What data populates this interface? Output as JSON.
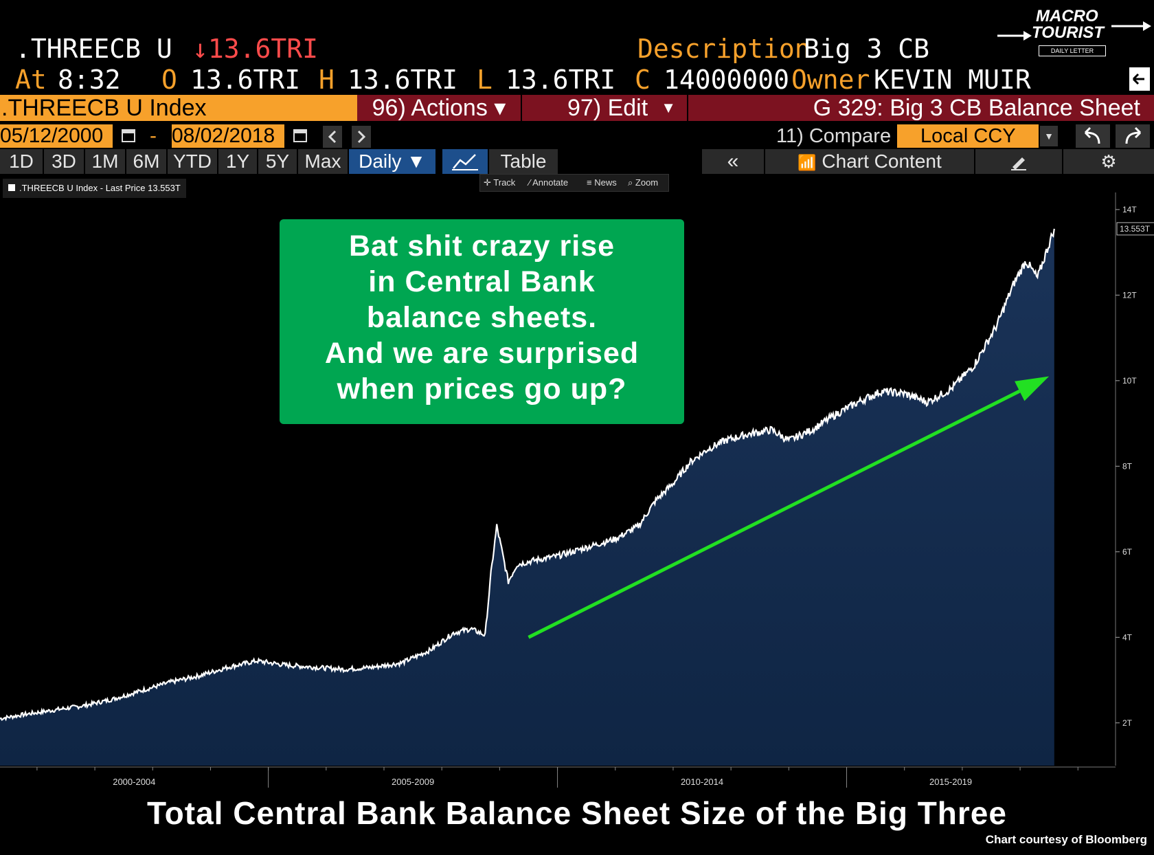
{
  "header": {
    "ticker": ".THREECB U",
    "last_change": "↓13.6TRI",
    "description_label": "Description",
    "description_value": "Big 3 CB",
    "at_label": "At",
    "at_time": "8:32",
    "open_label": "O",
    "open_value": "13.6TRI",
    "high_label": "H",
    "high_value": "13.6TRI",
    "low_label": "L",
    "low_value": "13.6TRI",
    "close_label": "C",
    "close_value": "14000000",
    "owner_label": "Owner",
    "owner_value": "KEVIN MUIR"
  },
  "logo": {
    "line1": "MACRO",
    "line2": "TOURIST",
    "line3": "DAILY LETTER"
  },
  "toolbar": {
    "index_name": ".THREECB U Index",
    "actions": "96) Actions ▾",
    "edit": "97) Edit",
    "chart_name": "G 329: Big 3 CB Balance Sheet",
    "start_date": "05/12/2000",
    "date_sep": "-",
    "end_date": "08/02/2018",
    "compare": "11) Compare",
    "currency": "Local CCY",
    "ranges": [
      "1D",
      "3D",
      "1M",
      "6M",
      "YTD",
      "1Y",
      "5Y",
      "Max"
    ],
    "frequency": "Daily ▼",
    "table": "Table",
    "chart_content": "Chart Content",
    "chips": [
      "Track",
      "Annotate",
      "News",
      "Zoom"
    ]
  },
  "legend": ".THREECB U Index - Last Price 13.553T",
  "callout_lines": [
    "Bat shit crazy rise",
    "in Central Bank",
    "balance sheets.",
    "And we are surprised",
    "when prices go up?"
  ],
  "caption": "Total Central Bank Balance Sheet Size of the Big Three",
  "credit": "Chart courtesy of Bloomberg",
  "colors": {
    "area": "#0f2544",
    "line": "#ffffff",
    "arrow": "#22e022",
    "callout": "#00a651",
    "orange": "#f7a12b",
    "maroon": "#7c1220"
  },
  "chart_data": {
    "type": "area",
    "xlabel": "",
    "ylabel": "",
    "x_tick_labels": [
      "2000-2004",
      "2005-2009",
      "2010-2014",
      "2015-2019"
    ],
    "y_tick_labels": [
      "2T",
      "4T",
      "6T",
      "8T",
      "10T",
      "12T",
      "14T"
    ],
    "y_ticks": [
      2,
      4,
      6,
      8,
      10,
      12,
      14
    ],
    "ylim": [
      1.0,
      14.4
    ],
    "xlim": [
      2000.36,
      2019.65
    ],
    "last_price_label": "13.553T",
    "series": [
      {
        "name": ".THREECB U Index",
        "x": [
          2000.36,
          2000.8,
          2001.3,
          2001.8,
          2002.3,
          2002.8,
          2003.3,
          2003.8,
          2004.3,
          2004.8,
          2005.3,
          2005.8,
          2006.3,
          2006.8,
          2007.3,
          2007.8,
          2008.2,
          2008.5,
          2008.75,
          2008.85,
          2008.95,
          2009.15,
          2009.3,
          2009.6,
          2010.0,
          2010.5,
          2011.0,
          2011.4,
          2011.7,
          2012.0,
          2012.3,
          2012.6,
          2012.9,
          2013.3,
          2013.7,
          2014.0,
          2014.4,
          2014.8,
          2015.2,
          2015.6,
          2016.0,
          2016.4,
          2016.8,
          2017.2,
          2017.6,
          2017.9,
          2018.1,
          2018.3,
          2018.59
        ],
        "y": [
          2.1,
          2.2,
          2.3,
          2.4,
          2.55,
          2.75,
          2.95,
          3.1,
          3.3,
          3.45,
          3.35,
          3.3,
          3.25,
          3.3,
          3.4,
          3.7,
          4.1,
          4.2,
          4.05,
          5.5,
          6.6,
          5.3,
          5.7,
          5.8,
          5.9,
          6.1,
          6.3,
          6.6,
          7.2,
          7.6,
          8.1,
          8.4,
          8.6,
          8.75,
          8.85,
          8.6,
          8.85,
          9.2,
          9.5,
          9.75,
          9.7,
          9.5,
          9.8,
          10.35,
          11.3,
          12.3,
          12.8,
          12.4,
          13.55
        ]
      }
    ],
    "annotations": [
      {
        "type": "arrow",
        "from": [
          2009.5,
          4.0
        ],
        "to": [
          2018.5,
          10.1
        ]
      }
    ]
  }
}
